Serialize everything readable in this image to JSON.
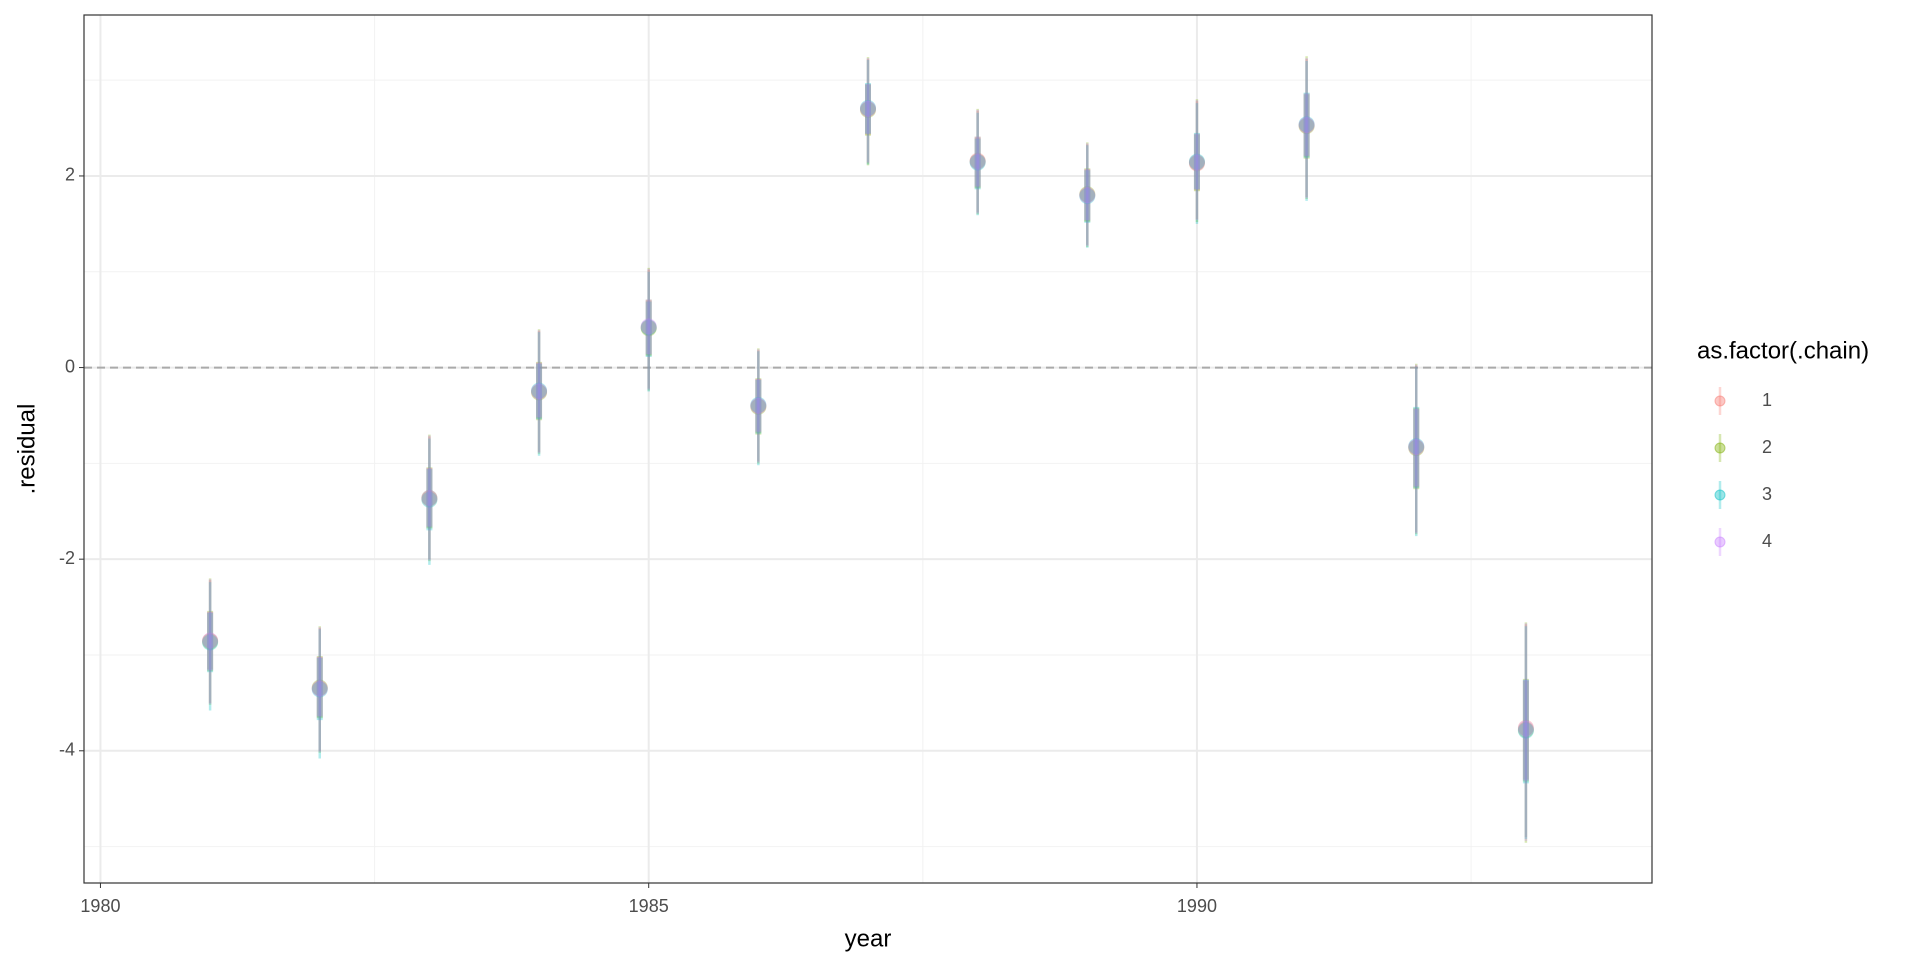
{
  "chart_data": {
    "type": "pointinterval",
    "x_label": "year",
    "y_label": ".residual",
    "legend_title": "as.factor(.chain)",
    "x": [
      1981,
      1982,
      1983,
      1984,
      1985,
      1986,
      1987,
      1988,
      1989,
      1990,
      1991,
      1992,
      1993
    ],
    "xlim": [
      1979.85,
      1994.15
    ],
    "xticks": [
      1980,
      1985,
      1990
    ],
    "xminor": [
      1982.5,
      1987.5,
      1992.5
    ],
    "ylim": [
      -5.38,
      3.68
    ],
    "yticks": [
      -4,
      -2,
      0,
      2
    ],
    "yminor": [
      -5,
      -3,
      -1,
      1,
      3
    ],
    "hline": 0,
    "grid": true,
    "legend": "right",
    "series": [
      {
        "name": "1",
        "color": "#F8766D",
        "values": [
          -2.85,
          -3.35,
          -1.37,
          -0.25,
          0.42,
          -0.4,
          2.7,
          2.16,
          1.8,
          2.13,
          2.53,
          -0.83,
          -3.76
        ],
        "lower": [
          -3.5,
          -4.0,
          -2.0,
          -0.88,
          -0.22,
          -0.98,
          2.13,
          1.62,
          1.28,
          1.55,
          1.78,
          -1.72,
          -4.9
        ],
        "upper": [
          -2.22,
          -2.72,
          -0.72,
          0.38,
          1.02,
          0.18,
          3.22,
          2.68,
          2.33,
          2.78,
          3.22,
          0.02,
          -2.68
        ],
        "lower66": [
          -3.15,
          -3.65,
          -1.67,
          -0.53,
          0.13,
          -0.68,
          2.43,
          1.88,
          1.53,
          1.85,
          2.2,
          -1.25,
          -4.3
        ],
        "upper66": [
          -2.55,
          -3.02,
          -1.05,
          0.05,
          0.7,
          -0.12,
          2.95,
          2.4,
          2.07,
          2.43,
          2.85,
          -0.43,
          -3.27
        ]
      },
      {
        "name": "2",
        "color": "#7CAE00",
        "values": [
          -2.86,
          -3.34,
          -1.36,
          -0.26,
          0.41,
          -0.41,
          2.69,
          2.15,
          1.81,
          2.14,
          2.52,
          -0.84,
          -3.78
        ],
        "lower": [
          -3.52,
          -4.02,
          -2.02,
          -0.9,
          -0.24,
          -1.0,
          2.11,
          1.6,
          1.26,
          1.52,
          1.76,
          -1.74,
          -4.96
        ],
        "upper": [
          -2.2,
          -2.7,
          -0.7,
          0.4,
          1.04,
          0.2,
          3.24,
          2.7,
          2.35,
          2.8,
          3.25,
          0.04,
          -2.66
        ],
        "lower66": [
          -3.17,
          -3.66,
          -1.68,
          -0.55,
          0.12,
          -0.7,
          2.42,
          1.87,
          1.52,
          1.84,
          2.18,
          -1.27,
          -4.32
        ],
        "upper66": [
          -2.54,
          -3.01,
          -1.04,
          0.06,
          0.71,
          -0.11,
          2.96,
          2.41,
          2.08,
          2.44,
          2.86,
          -0.42,
          -3.25
        ]
      },
      {
        "name": "3",
        "color": "#00BFC4",
        "values": [
          -2.87,
          -3.36,
          -1.38,
          -0.24,
          0.42,
          -0.39,
          2.71,
          2.14,
          1.79,
          2.15,
          2.54,
          -0.82,
          -3.79
        ],
        "lower": [
          -3.58,
          -4.08,
          -2.06,
          -0.92,
          -0.25,
          -1.02,
          2.12,
          1.59,
          1.25,
          1.5,
          1.74,
          -1.76,
          -4.92
        ],
        "upper": [
          -2.24,
          -2.73,
          -0.74,
          0.37,
          1.0,
          0.17,
          3.21,
          2.66,
          2.32,
          2.76,
          3.2,
          0.01,
          -2.7
        ],
        "lower66": [
          -3.18,
          -3.68,
          -1.7,
          -0.54,
          0.11,
          -0.69,
          2.44,
          1.86,
          1.51,
          1.86,
          2.19,
          -1.26,
          -4.34
        ],
        "upper66": [
          -2.56,
          -3.03,
          -1.06,
          0.04,
          0.69,
          -0.13,
          2.97,
          2.39,
          2.06,
          2.45,
          2.87,
          -0.41,
          -3.26
        ]
      },
      {
        "name": "4",
        "color": "#C77CFF",
        "values": [
          -2.85,
          -3.35,
          -1.36,
          -0.25,
          0.43,
          -0.4,
          2.7,
          2.15,
          1.8,
          2.14,
          2.53,
          -0.83,
          -3.77
        ],
        "lower": [
          -3.51,
          -4.01,
          -2.01,
          -0.89,
          -0.23,
          -0.99,
          2.14,
          1.61,
          1.27,
          1.54,
          1.77,
          -1.73,
          -4.94
        ],
        "upper": [
          -2.21,
          -2.71,
          -0.71,
          0.39,
          1.03,
          0.19,
          3.23,
          2.69,
          2.34,
          2.79,
          3.23,
          0.03,
          -2.67
        ],
        "lower66": [
          -3.16,
          -3.64,
          -1.66,
          -0.52,
          0.14,
          -0.67,
          2.44,
          1.89,
          1.54,
          1.86,
          2.21,
          -1.24,
          -4.31
        ],
        "upper66": [
          -2.55,
          -3.02,
          -1.05,
          0.05,
          0.71,
          -0.12,
          2.96,
          2.41,
          2.07,
          2.44,
          2.86,
          -0.43,
          -3.26
        ]
      }
    ]
  }
}
